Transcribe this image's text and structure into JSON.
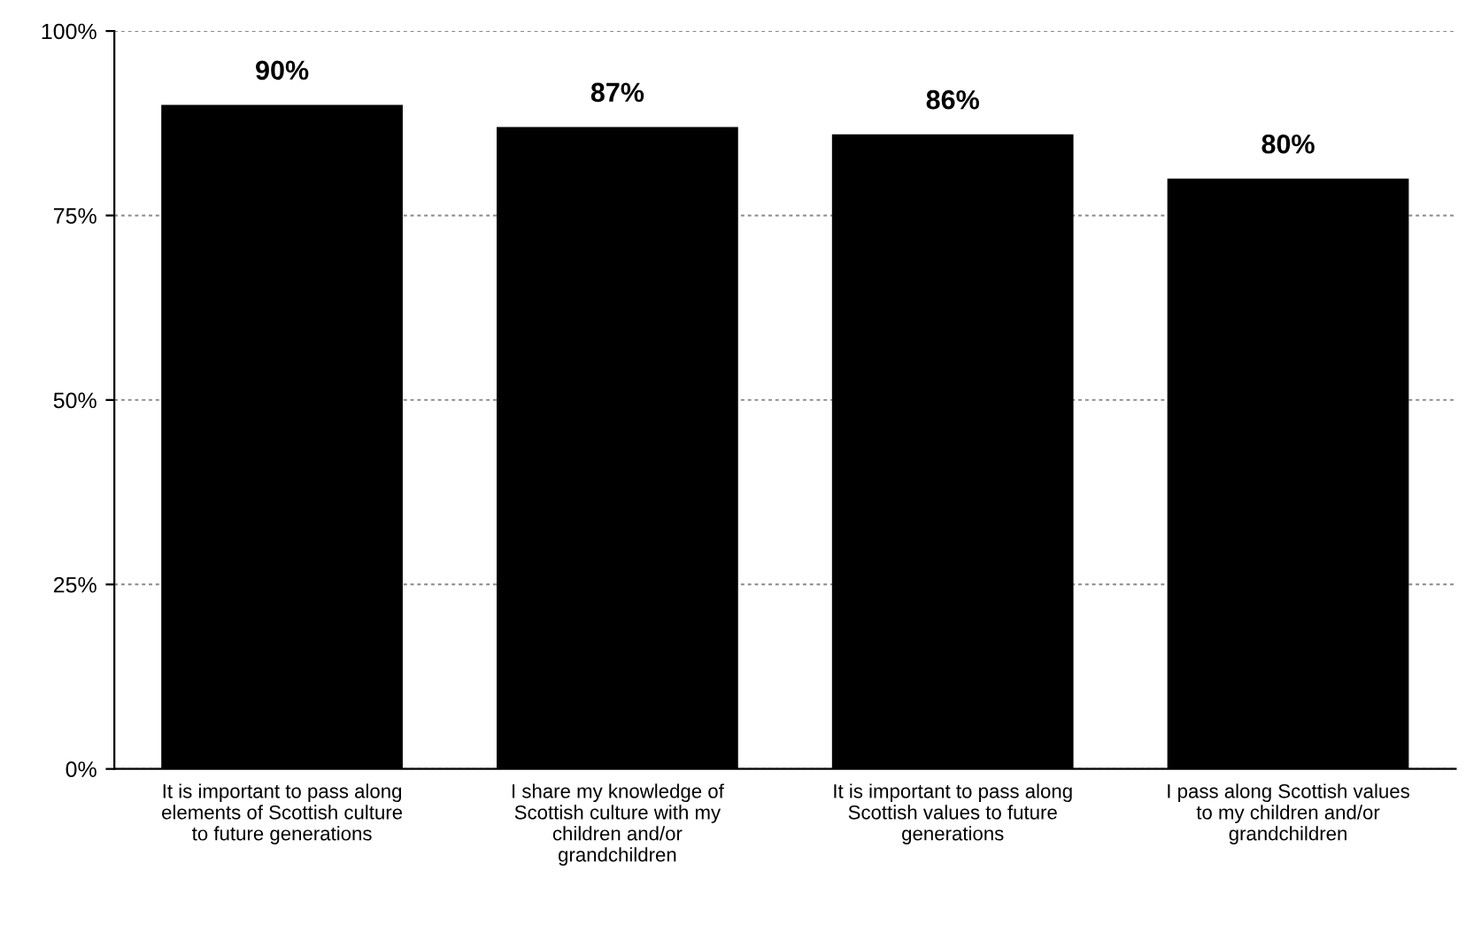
{
  "chart_data": {
    "type": "bar",
    "categories": [
      "It is important to pass along\nelements of Scottish culture\nto future generations",
      "I share my knowledge of\nScottish culture with my\nchildren and/or\ngrandchildren",
      "It is important to pass along\nScottish values to future\ngenerations",
      "I pass along Scottish values\nto my children and/or\ngrandchildren"
    ],
    "values": [
      90,
      87,
      86,
      80
    ],
    "value_labels": [
      "90%",
      "87%",
      "86%",
      "80%"
    ],
    "color": "#000000",
    "ylim": [
      0,
      100
    ],
    "yticks": [
      {
        "value": 0,
        "label": "0%"
      },
      {
        "value": 25,
        "label": "25%"
      },
      {
        "value": 50,
        "label": "50%"
      },
      {
        "value": 75,
        "label": "75%"
      },
      {
        "value": 100,
        "label": "100%"
      }
    ],
    "grid": "y"
  }
}
